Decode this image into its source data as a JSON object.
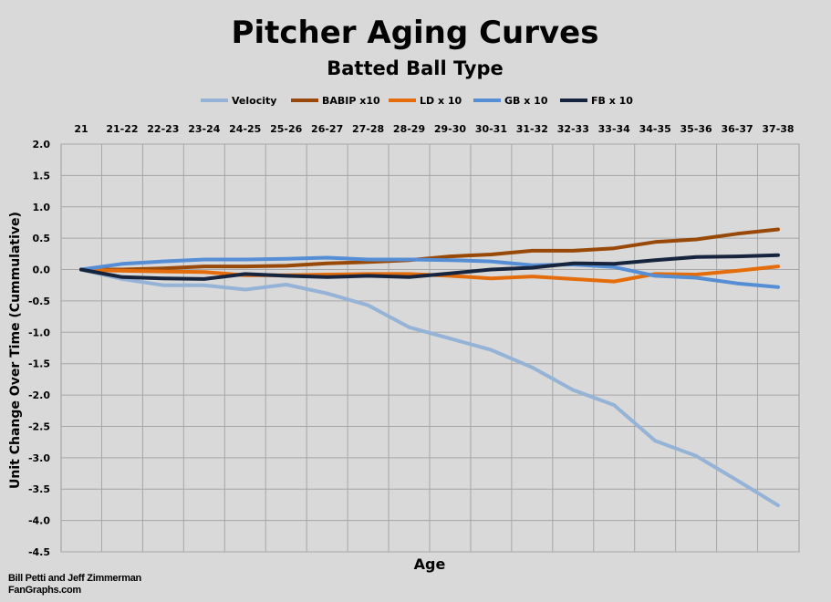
{
  "chart_data": {
    "type": "line",
    "title": "Pitcher Aging Curves",
    "subtitle": "Batted Ball Type",
    "xlabel": "Age",
    "ylabel": "Unit Change Over Time (Cummulative)",
    "ylim": [
      -4.5,
      2.0
    ],
    "yticks": [
      "2.0",
      "1.5",
      "1.0",
      "0.5",
      "0.0",
      "-0.5",
      "-1.0",
      "-1.5",
      "-2.0",
      "-2.5",
      "-3.0",
      "-3.5",
      "-4.0",
      "-4.5"
    ],
    "ytick_values": [
      2.0,
      1.5,
      1.0,
      0.5,
      0.0,
      -0.5,
      -1.0,
      -1.5,
      -2.0,
      -2.5,
      -3.0,
      -3.5,
      -4.0,
      -4.5
    ],
    "categories": [
      "21",
      "21-22",
      "22-23",
      "23-24",
      "24-25",
      "25-26",
      "26-27",
      "27-28",
      "28-29",
      "29-30",
      "30-31",
      "31-32",
      "32-33",
      "33-34",
      "34-35",
      "35-36",
      "36-37",
      "37-38"
    ],
    "x_axis_position": "top",
    "grid": true,
    "legend_position": "top",
    "series": [
      {
        "name": "Velocity",
        "color": "#95b3d7",
        "values": [
          0.0,
          -0.15,
          -0.25,
          -0.25,
          -0.32,
          -0.24,
          -0.38,
          -0.57,
          -0.92,
          -1.1,
          -1.28,
          -1.56,
          -1.92,
          -2.16,
          -2.73,
          -2.97,
          -3.36,
          -3.76
        ]
      },
      {
        "name": "BABIP x10",
        "color": "#984807",
        "values": [
          0.0,
          0.0,
          0.02,
          0.05,
          0.05,
          0.06,
          0.1,
          0.12,
          0.15,
          0.21,
          0.24,
          0.3,
          0.3,
          0.34,
          0.44,
          0.48,
          0.57,
          0.64
        ]
      },
      {
        "name": "LD x 10",
        "color": "#e46c0a",
        "values": [
          0.0,
          -0.02,
          -0.03,
          -0.04,
          -0.09,
          -0.09,
          -0.08,
          -0.07,
          -0.07,
          -0.1,
          -0.14,
          -0.11,
          -0.15,
          -0.19,
          -0.07,
          -0.08,
          -0.02,
          0.05
        ]
      },
      {
        "name": "GB x 10",
        "color": "#558ed5",
        "values": [
          0.0,
          0.09,
          0.13,
          0.16,
          0.16,
          0.17,
          0.19,
          0.16,
          0.16,
          0.15,
          0.13,
          0.07,
          0.08,
          0.04,
          -0.1,
          -0.13,
          -0.22,
          -0.28
        ]
      },
      {
        "name": "FB x 10",
        "color": "#17243d",
        "values": [
          0.0,
          -0.12,
          -0.14,
          -0.15,
          -0.07,
          -0.1,
          -0.12,
          -0.1,
          -0.12,
          -0.06,
          0.0,
          0.03,
          0.1,
          0.09,
          0.15,
          0.2,
          0.21,
          0.23
        ]
      }
    ]
  },
  "credits": {
    "line1": "Bill Petti and Jeff Zimmerman",
    "line2": "FanGraphs.com"
  }
}
